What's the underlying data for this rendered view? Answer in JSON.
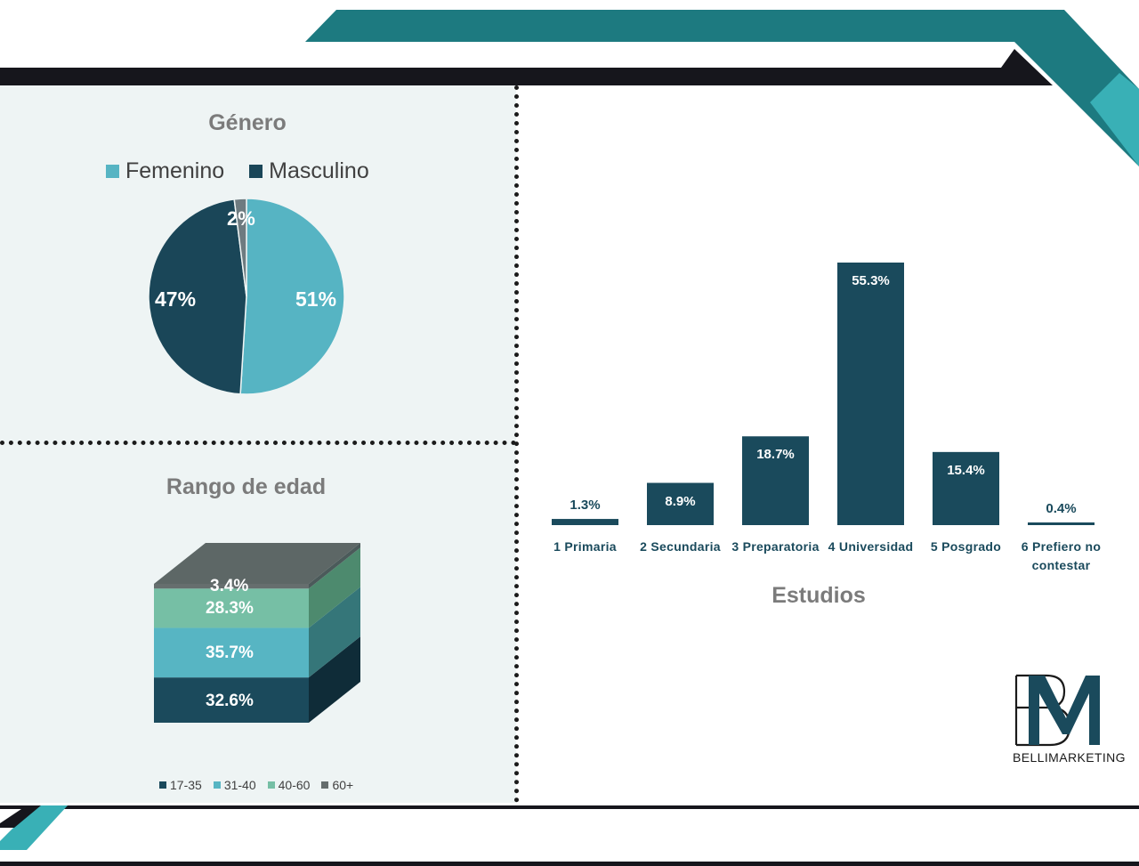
{
  "colors": {
    "teal": "#1d7a80",
    "teal_light": "#39b0b6",
    "dark_navy": "#1a4a5c",
    "femenino": "#56b4c3",
    "masculino": "#1a4658",
    "pie_other": "#6e7b80",
    "panel_bg": "#eef4f4",
    "age_17_35": "#1b4a5c",
    "age_31_40": "#57b5c3",
    "age_40_60": "#76bfa5",
    "age_60_plus": "#666e6e"
  },
  "chart_data": [
    {
      "type": "pie",
      "title": "Género",
      "legend": [
        "Femenino",
        "Masculino"
      ],
      "legend_position": "top",
      "slices": [
        {
          "name": "Femenino",
          "value": 51,
          "label": "51%"
        },
        {
          "name": "Masculino",
          "value": 47,
          "label": "47%"
        },
        {
          "name": "",
          "value": 2,
          "label": "2%"
        }
      ]
    },
    {
      "type": "bar",
      "subtype": "100% stacked 3D column",
      "title": "Rango de edad",
      "legend": [
        "17-35",
        "31-40",
        "40-60",
        "60+"
      ],
      "legend_position": "bottom",
      "series": [
        {
          "name": "17-35",
          "value": 32.6,
          "label": "32.6%"
        },
        {
          "name": "31-40",
          "value": 35.7,
          "label": "35.7%"
        },
        {
          "name": "40-60",
          "value": 28.3,
          "label": "28.3%"
        },
        {
          "name": "60+",
          "value": 3.4,
          "label": "3.4%"
        }
      ]
    },
    {
      "type": "bar",
      "title": "Estudios",
      "categories": [
        "1 Primaria",
        "2 Secundaria",
        "3 Preparatoria",
        "4 Universidad",
        "5 Posgrado",
        "6 Prefiero no contestar"
      ],
      "values": [
        1.3,
        8.9,
        18.7,
        55.3,
        15.4,
        0.4
      ],
      "labels": [
        "1.3%",
        "8.9%",
        "18.7%",
        "55.3%",
        "15.4%",
        "0.4%"
      ],
      "ylim": [
        0,
        55.3
      ],
      "grid": false
    }
  ],
  "logo": {
    "monogram": "BM",
    "name_first": "Belli",
    "name_second": "Marketing"
  }
}
